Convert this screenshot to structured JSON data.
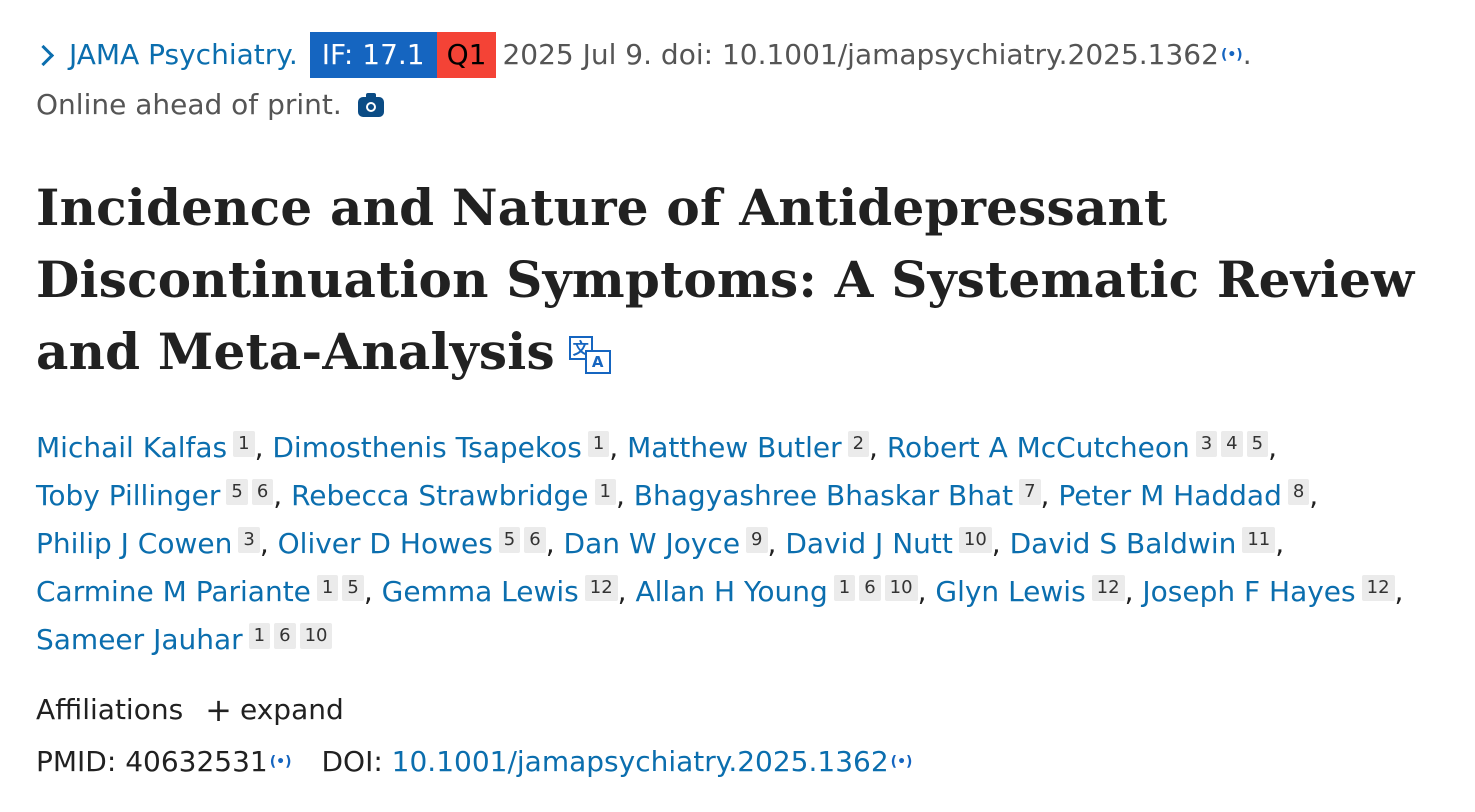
{
  "citation": {
    "journal": "JAMA Psychiatry.",
    "if_badge": "IF: 17.1",
    "quartile_badge": "Q1",
    "date_doi": "2025 Jul 9. doi: 10.1001/jamapsychiatry.2025.1362",
    "trailing": ".",
    "status": "Online ahead of print.",
    "colors": {
      "if_bg": "#1565c0",
      "q_bg": "#f44336",
      "link": "#0b6eae"
    },
    "icons": {
      "chevron": "chevron-right-icon",
      "radio": "radio-signal-icon",
      "camera": "camera-icon"
    }
  },
  "title": {
    "line1": "Incidence and Nature of Antidepressant",
    "line2": "Discontinuation Symptoms: A Systematic Review",
    "line3": "and Meta-Analysis",
    "translate_icon": {
      "left_glyph": "文",
      "right_glyph": "A"
    }
  },
  "authors": [
    {
      "name": "Michail Kalfas",
      "affs": [
        "1"
      ],
      "sep": ", "
    },
    {
      "name": "Dimosthenis Tsapekos",
      "affs": [
        "1"
      ],
      "sep": ", "
    },
    {
      "name": "Matthew Butler",
      "affs": [
        "2"
      ],
      "sep": ", "
    },
    {
      "name": "Robert A McCutcheon",
      "affs": [
        "3",
        "4",
        "5"
      ],
      "sep": ","
    },
    {
      "name": "Toby Pillinger",
      "affs": [
        "5",
        "6"
      ],
      "sep": ", "
    },
    {
      "name": "Rebecca Strawbridge",
      "affs": [
        "1"
      ],
      "sep": ", "
    },
    {
      "name": "Bhagyashree Bhaskar Bhat",
      "affs": [
        "7"
      ],
      "sep": ", "
    },
    {
      "name": "Peter M Haddad",
      "affs": [
        "8"
      ],
      "sep": ","
    },
    {
      "name": "Philip J Cowen",
      "affs": [
        "3"
      ],
      "sep": ", "
    },
    {
      "name": "Oliver D Howes",
      "affs": [
        "5",
        "6"
      ],
      "sep": ", "
    },
    {
      "name": "Dan W Joyce",
      "affs": [
        "9"
      ],
      "sep": ", "
    },
    {
      "name": "David J Nutt",
      "affs": [
        "10"
      ],
      "sep": ", "
    },
    {
      "name": "David S Baldwin",
      "affs": [
        "11"
      ],
      "sep": ","
    },
    {
      "name": "Carmine M Pariante",
      "affs": [
        "1",
        "5"
      ],
      "sep": ", "
    },
    {
      "name": "Gemma Lewis",
      "affs": [
        "12"
      ],
      "sep": ", "
    },
    {
      "name": "Allan H Young",
      "affs": [
        "1",
        "6",
        "10"
      ],
      "sep": ", "
    },
    {
      "name": "Glyn Lewis",
      "affs": [
        "12"
      ],
      "sep": ", "
    },
    {
      "name": "Joseph F Hayes",
      "affs": [
        "12"
      ],
      "sep": ","
    },
    {
      "name": "Sameer Jauhar",
      "affs": [
        "1",
        "6",
        "10"
      ],
      "sep": ""
    }
  ],
  "affiliations": {
    "label": "Affiliations",
    "toggle": "expand",
    "toggle_icon": "plus-icon"
  },
  "ids": {
    "pmid_label": "PMID:",
    "pmid": "40632531",
    "doi_label": "DOI:",
    "doi": "10.1001/jamapsychiatry.2025.1362"
  }
}
